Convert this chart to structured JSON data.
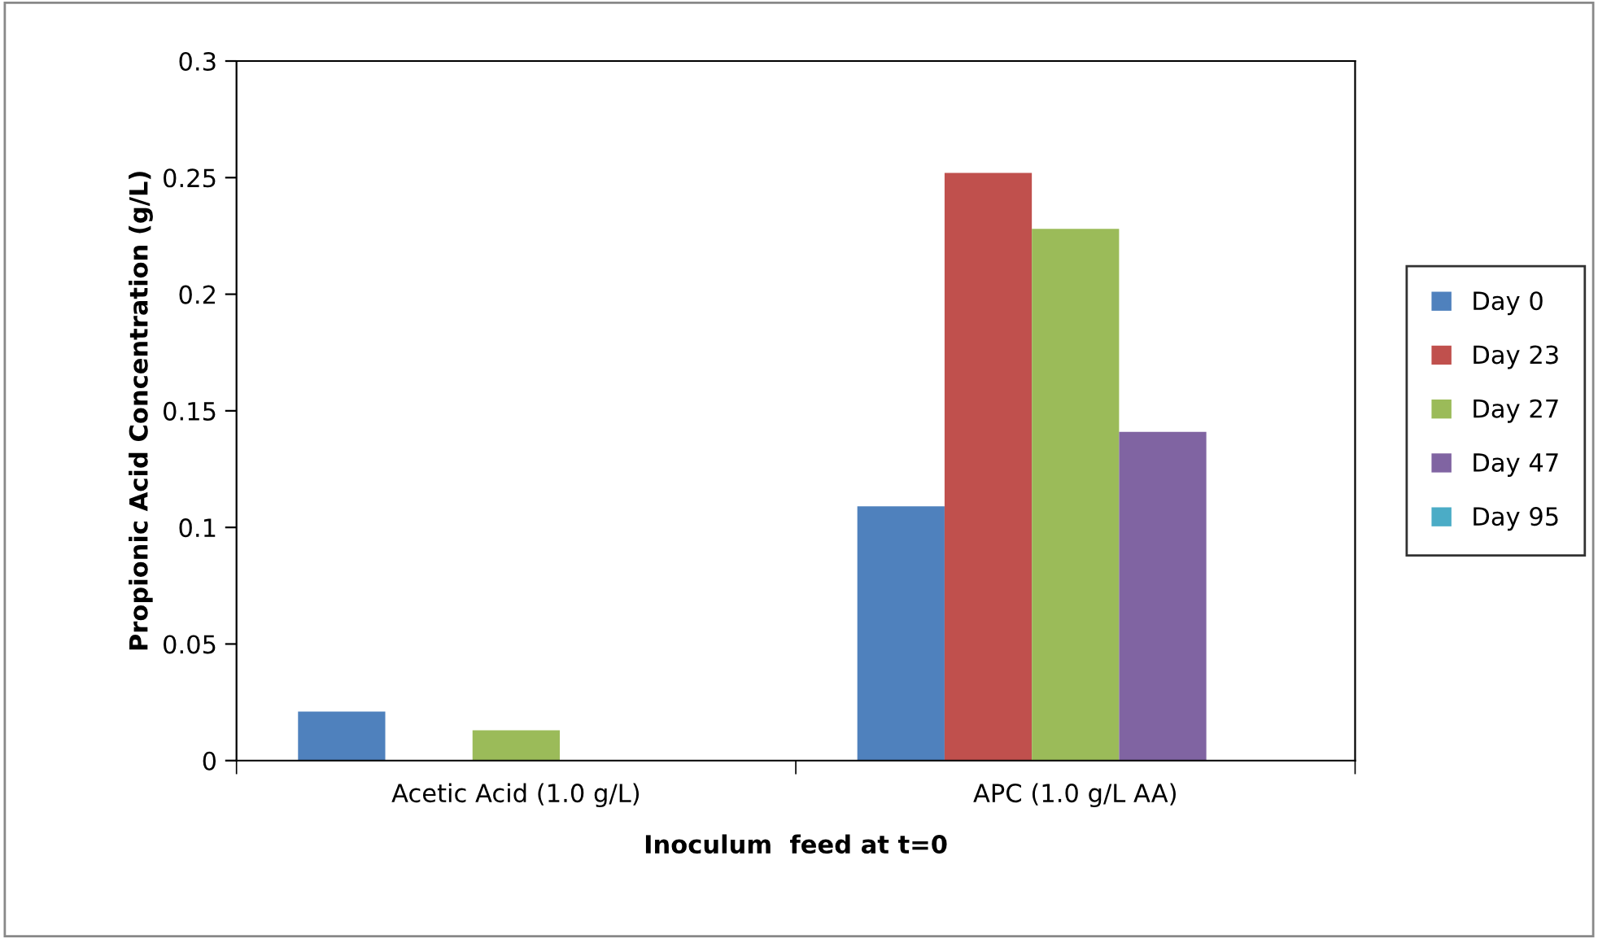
{
  "chart_data": {
    "type": "bar",
    "xlabel": "Inoculum  feed at t=0",
    "ylabel": "Propionic Acid Concentration (g/L)",
    "categories": [
      "Acetic Acid (1.0 g/L)",
      "APC (1.0 g/L AA)"
    ],
    "series": [
      {
        "name": "Day 0",
        "color": "#4f81bd",
        "values": [
          0.021,
          0.109
        ]
      },
      {
        "name": "Day 23",
        "color": "#c0504d",
        "values": [
          0,
          0.252
        ]
      },
      {
        "name": "Day 27",
        "color": "#9bbb59",
        "values": [
          0.013,
          0.228
        ]
      },
      {
        "name": "Day 47",
        "color": "#8064a2",
        "values": [
          0,
          0.141
        ]
      },
      {
        "name": "Day 95",
        "color": "#4bacc6",
        "values": [
          0,
          0
        ]
      }
    ],
    "ylim": [
      0,
      0.3
    ],
    "yticks": [
      0,
      0.05,
      0.1,
      0.15,
      0.2,
      0.25,
      0.3
    ],
    "grid": false,
    "legend": "right"
  }
}
